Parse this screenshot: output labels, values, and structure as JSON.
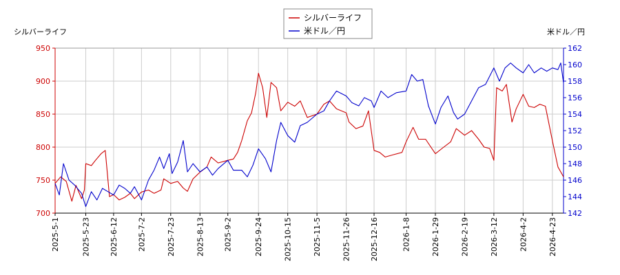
{
  "chart_data": {
    "type": "line",
    "legend_position": "top-center",
    "grid": true,
    "left_axis_label": "シルバーライフ",
    "right_axis_label": "米ドル／円",
    "left_ylim": [
      700,
      950
    ],
    "left_yticks": [
      700,
      750,
      800,
      850,
      900,
      950
    ],
    "right_ylim": [
      142,
      162
    ],
    "right_yticks": [
      142,
      144,
      146,
      148,
      150,
      152,
      154,
      156,
      158,
      160,
      162
    ],
    "xlim": [
      "2025-05-01",
      "2026-05-01"
    ],
    "x_tick_labels": [
      "2025-5-1",
      "2025-5-23",
      "2025-6-12",
      "2025-7-2",
      "2025-7-23",
      "2025-8-13",
      "2025-9-2",
      "2025-9-24",
      "2025-10-15",
      "2025-11-5",
      "2025-11-26",
      "2025-12-16",
      "2026-1-8",
      "2026-1-29",
      "2026-2-19",
      "2026-3-12",
      "2026-4-2",
      "2026-4-23"
    ],
    "x_tick_dates": [
      "2025-05-01",
      "2025-05-23",
      "2025-06-12",
      "2025-07-02",
      "2025-07-23",
      "2025-08-13",
      "2025-09-02",
      "2025-09-24",
      "2025-10-15",
      "2025-11-05",
      "2025-11-26",
      "2025-12-16",
      "2026-01-08",
      "2026-01-29",
      "2026-02-19",
      "2026-03-12",
      "2026-04-02",
      "2026-04-23"
    ],
    "colors": {
      "left_axis": "#cc0000",
      "right_axis": "#0000cc",
      "grid": "#cccccc"
    },
    "series": [
      {
        "name": "シルバーライフ",
        "axis": "left",
        "color": "#cc0000",
        "points": [
          [
            "2025-05-01",
            745
          ],
          [
            "2025-05-05",
            755
          ],
          [
            "2025-05-09",
            748
          ],
          [
            "2025-05-13",
            718
          ],
          [
            "2025-05-16",
            742
          ],
          [
            "2025-05-20",
            722
          ],
          [
            "2025-05-22",
            735
          ],
          [
            "2025-05-23",
            775
          ],
          [
            "2025-05-27",
            772
          ],
          [
            "2025-05-30",
            780
          ],
          [
            "2025-06-03",
            790
          ],
          [
            "2025-06-06",
            795
          ],
          [
            "2025-06-09",
            725
          ],
          [
            "2025-06-12",
            728
          ],
          [
            "2025-06-16",
            720
          ],
          [
            "2025-06-20",
            724
          ],
          [
            "2025-06-24",
            730
          ],
          [
            "2025-06-27",
            722
          ],
          [
            "2025-07-02",
            732
          ],
          [
            "2025-07-07",
            735
          ],
          [
            "2025-07-11",
            730
          ],
          [
            "2025-07-16",
            735
          ],
          [
            "2025-07-18",
            752
          ],
          [
            "2025-07-23",
            745
          ],
          [
            "2025-07-28",
            748
          ],
          [
            "2025-08-01",
            738
          ],
          [
            "2025-08-04",
            733
          ],
          [
            "2025-08-08",
            752
          ],
          [
            "2025-08-13",
            762
          ],
          [
            "2025-08-18",
            770
          ],
          [
            "2025-08-21",
            785
          ],
          [
            "2025-08-26",
            776
          ],
          [
            "2025-09-02",
            780
          ],
          [
            "2025-09-06",
            782
          ],
          [
            "2025-09-09",
            792
          ],
          [
            "2025-09-12",
            810
          ],
          [
            "2025-09-16",
            840
          ],
          [
            "2025-09-19",
            852
          ],
          [
            "2025-09-22",
            882
          ],
          [
            "2025-09-24",
            912
          ],
          [
            "2025-09-27",
            890
          ],
          [
            "2025-09-30",
            845
          ],
          [
            "2025-10-03",
            898
          ],
          [
            "2025-10-07",
            890
          ],
          [
            "2025-10-10",
            855
          ],
          [
            "2025-10-15",
            868
          ],
          [
            "2025-10-20",
            862
          ],
          [
            "2025-10-24",
            870
          ],
          [
            "2025-10-29",
            845
          ],
          [
            "2025-11-05",
            850
          ],
          [
            "2025-11-10",
            865
          ],
          [
            "2025-11-14",
            870
          ],
          [
            "2025-11-19",
            858
          ],
          [
            "2025-11-26",
            852
          ],
          [
            "2025-11-28",
            838
          ],
          [
            "2025-12-03",
            828
          ],
          [
            "2025-12-08",
            832
          ],
          [
            "2025-12-12",
            855
          ],
          [
            "2025-12-16",
            795
          ],
          [
            "2025-12-20",
            792
          ],
          [
            "2025-12-24",
            785
          ],
          [
            "2025-12-29",
            788
          ],
          [
            "2026-01-05",
            792
          ],
          [
            "2026-01-08",
            808
          ],
          [
            "2026-01-13",
            830
          ],
          [
            "2026-01-17",
            812
          ],
          [
            "2026-01-22",
            812
          ],
          [
            "2026-01-29",
            790
          ],
          [
            "2026-02-04",
            800
          ],
          [
            "2026-02-09",
            808
          ],
          [
            "2026-02-13",
            828
          ],
          [
            "2026-02-19",
            818
          ],
          [
            "2026-02-24",
            825
          ],
          [
            "2026-03-01",
            812
          ],
          [
            "2026-03-05",
            800
          ],
          [
            "2026-03-09",
            798
          ],
          [
            "2026-03-12",
            780
          ],
          [
            "2026-03-14",
            890
          ],
          [
            "2026-03-18",
            885
          ],
          [
            "2026-03-21",
            895
          ],
          [
            "2026-03-25",
            838
          ],
          [
            "2026-03-28",
            858
          ],
          [
            "2026-04-02",
            880
          ],
          [
            "2026-04-06",
            862
          ],
          [
            "2026-04-10",
            860
          ],
          [
            "2026-04-14",
            865
          ],
          [
            "2026-04-18",
            862
          ],
          [
            "2026-04-23",
            810
          ],
          [
            "2026-04-27",
            770
          ],
          [
            "2026-05-01",
            755
          ]
        ]
      },
      {
        "name": "米ドル／円",
        "axis": "right",
        "color": "#0000cc",
        "points": [
          [
            "2025-05-01",
            145.6
          ],
          [
            "2025-05-04",
            144.2
          ],
          [
            "2025-05-07",
            148.0
          ],
          [
            "2025-05-11",
            146.0
          ],
          [
            "2025-05-15",
            145.4
          ],
          [
            "2025-05-20",
            144.4
          ],
          [
            "2025-05-23",
            142.8
          ],
          [
            "2025-05-27",
            144.6
          ],
          [
            "2025-05-31",
            143.6
          ],
          [
            "2025-06-04",
            145.0
          ],
          [
            "2025-06-08",
            144.6
          ],
          [
            "2025-06-12",
            144.2
          ],
          [
            "2025-06-16",
            145.4
          ],
          [
            "2025-06-20",
            145.0
          ],
          [
            "2025-06-24",
            144.4
          ],
          [
            "2025-06-27",
            145.2
          ],
          [
            "2025-07-02",
            143.6
          ],
          [
            "2025-07-07",
            146.0
          ],
          [
            "2025-07-11",
            147.2
          ],
          [
            "2025-07-15",
            148.8
          ],
          [
            "2025-07-18",
            147.4
          ],
          [
            "2025-07-22",
            149.2
          ],
          [
            "2025-07-24",
            146.8
          ],
          [
            "2025-07-28",
            148.2
          ],
          [
            "2025-08-01",
            150.8
          ],
          [
            "2025-08-04",
            147.0
          ],
          [
            "2025-08-08",
            148.0
          ],
          [
            "2025-08-13",
            147.0
          ],
          [
            "2025-08-18",
            147.6
          ],
          [
            "2025-08-22",
            146.6
          ],
          [
            "2025-08-26",
            147.4
          ],
          [
            "2025-09-02",
            148.4
          ],
          [
            "2025-09-06",
            147.2
          ],
          [
            "2025-09-12",
            147.2
          ],
          [
            "2025-09-16",
            146.4
          ],
          [
            "2025-09-20",
            147.8
          ],
          [
            "2025-09-24",
            149.8
          ],
          [
            "2025-09-29",
            148.6
          ],
          [
            "2025-10-03",
            147.0
          ],
          [
            "2025-10-07",
            150.8
          ],
          [
            "2025-10-10",
            153.0
          ],
          [
            "2025-10-15",
            151.4
          ],
          [
            "2025-10-20",
            150.6
          ],
          [
            "2025-10-24",
            152.6
          ],
          [
            "2025-10-29",
            153.0
          ],
          [
            "2025-11-05",
            154.0
          ],
          [
            "2025-11-10",
            154.4
          ],
          [
            "2025-11-14",
            155.6
          ],
          [
            "2025-11-19",
            156.8
          ],
          [
            "2025-11-26",
            156.2
          ],
          [
            "2025-11-30",
            155.4
          ],
          [
            "2025-12-05",
            155.0
          ],
          [
            "2025-12-09",
            156.0
          ],
          [
            "2025-12-14",
            155.6
          ],
          [
            "2025-12-16",
            154.8
          ],
          [
            "2025-12-21",
            156.8
          ],
          [
            "2025-12-26",
            156.0
          ],
          [
            "2026-01-01",
            156.6
          ],
          [
            "2026-01-08",
            156.8
          ],
          [
            "2026-01-12",
            158.8
          ],
          [
            "2026-01-16",
            158.0
          ],
          [
            "2026-01-20",
            158.2
          ],
          [
            "2026-01-24",
            155.0
          ],
          [
            "2026-01-29",
            152.8
          ],
          [
            "2026-02-02",
            154.8
          ],
          [
            "2026-02-07",
            156.2
          ],
          [
            "2026-02-11",
            154.2
          ],
          [
            "2026-02-14",
            153.4
          ],
          [
            "2026-02-19",
            154.0
          ],
          [
            "2026-02-24",
            155.6
          ],
          [
            "2026-03-01",
            157.2
          ],
          [
            "2026-03-06",
            157.6
          ],
          [
            "2026-03-12",
            159.6
          ],
          [
            "2026-03-16",
            158.0
          ],
          [
            "2026-03-20",
            159.6
          ],
          [
            "2026-03-24",
            160.2
          ],
          [
            "2026-03-28",
            159.6
          ],
          [
            "2026-04-02",
            159.0
          ],
          [
            "2026-04-06",
            160.0
          ],
          [
            "2026-04-10",
            159.0
          ],
          [
            "2026-04-15",
            159.6
          ],
          [
            "2026-04-19",
            159.2
          ],
          [
            "2026-04-23",
            159.6
          ],
          [
            "2026-04-27",
            159.4
          ],
          [
            "2026-04-29",
            160.2
          ],
          [
            "2026-05-01",
            157.8
          ]
        ]
      }
    ]
  }
}
